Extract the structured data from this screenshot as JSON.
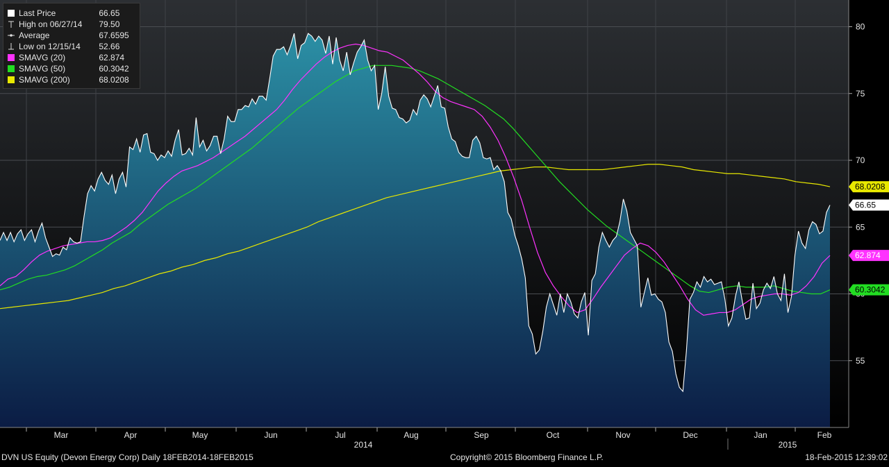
{
  "colors": {
    "background_top": "#2c2f33",
    "background_bottom": "#000000",
    "area_top": "#2b8fa5",
    "area_bottom": "#0b1c44",
    "price_line": "#ffffff",
    "sma20": "#ff33ff",
    "sma50": "#22dd22",
    "sma200": "#e8e800"
  },
  "legend": {
    "items": [
      {
        "label": "Last Price",
        "value": "66.65",
        "swatch": "#ffffff",
        "icon": "filled-square"
      },
      {
        "label": "High on 06/27/14",
        "value": "79.50",
        "swatch": "",
        "icon": "high-marker-icon"
      },
      {
        "label": "Average",
        "value": "67.6595",
        "swatch": "",
        "icon": "average-marker-icon"
      },
      {
        "label": "Low on 12/15/14",
        "value": "52.66",
        "swatch": "",
        "icon": "low-marker-icon"
      },
      {
        "label": "SMAVG (20)",
        "value": "62.874",
        "swatch": "#ff33ff",
        "icon": "filled-square"
      },
      {
        "label": "SMAVG (50)",
        "value": "60.3042",
        "swatch": "#22dd22",
        "icon": "filled-square"
      },
      {
        "label": "SMAVG (200)",
        "value": "68.0208",
        "swatch": "#e8e800",
        "icon": "filled-square"
      }
    ]
  },
  "badges": [
    {
      "value": "68.0208",
      "bg": "#e8e800",
      "fg": "#000000"
    },
    {
      "value": "66.65",
      "bg": "#ffffff",
      "fg": "#000000"
    },
    {
      "value": "62.874",
      "bg": "#ff33ff",
      "fg": "#ffffff"
    },
    {
      "value": "60.3042",
      "bg": "#22dd22",
      "fg": "#000000"
    }
  ],
  "footer": {
    "left": "DVN US Equity (Devon Energy Corp)  Daily 18FEB2014-18FEB2015",
    "center": "Copyright© 2015 Bloomberg Finance L.P.",
    "right": "18-Feb-2015 12:39:02"
  },
  "chart_data": {
    "type": "area",
    "ylim": [
      50,
      82
    ],
    "y_ticks": [
      55,
      60,
      65,
      70,
      75,
      80
    ],
    "y_tick_labels": [
      "55",
      "60",
      "65",
      "70",
      "75",
      "80"
    ],
    "x_month_labels": [
      "Mar",
      "Apr",
      "May",
      "Jun",
      "Jul",
      "Aug",
      "Sep",
      "Oct",
      "Nov",
      "Dec",
      "Jan",
      "Feb"
    ],
    "x_year_labels": [
      "2014",
      "2015"
    ],
    "grid": true,
    "series": [
      {
        "name": "Last Price",
        "values": [
          64.0,
          64.6,
          64.0,
          64.6,
          63.9,
          64.5,
          64.8,
          64.0,
          64.5,
          64.8,
          63.9,
          64.7,
          65.3,
          64.2,
          63.5,
          62.8,
          63.0,
          62.9,
          63.5,
          63.3,
          64.2,
          63.9,
          63.8,
          63.9,
          65.8,
          67.5,
          68.1,
          67.7,
          68.6,
          69.1,
          68.5,
          68.2,
          68.9,
          67.5,
          68.6,
          69.1,
          68.0,
          71.0,
          70.8,
          71.6,
          70.6,
          71.9,
          72.0,
          70.6,
          70.5,
          70.0,
          70.4,
          70.2,
          70.7,
          70.3,
          71.5,
          72.3,
          70.4,
          70.5,
          70.9,
          70.4,
          73.2,
          71.0,
          71.5,
          70.7,
          71.1,
          71.8,
          71.8,
          70.5,
          71.6,
          73.3,
          72.9,
          72.9,
          73.8,
          73.8,
          74.1,
          74.0,
          74.6,
          74.2,
          74.8,
          74.8,
          74.5,
          76.1,
          77.8,
          78.3,
          78.3,
          78.5,
          77.9,
          78.6,
          79.5,
          77.6,
          78.6,
          78.8,
          79.5,
          79.3,
          78.9,
          79.3,
          79.0,
          78.0,
          79.3,
          77.2,
          79.2,
          77.5,
          76.7,
          78.1,
          76.4,
          77.3,
          78.1,
          78.5,
          79.0,
          77.5,
          76.7,
          77.1,
          73.8,
          75.0,
          77.0,
          74.8,
          73.9,
          73.8,
          73.2,
          73.1,
          72.8,
          73.0,
          73.8,
          73.4,
          74.5,
          74.9,
          74.6,
          74.0,
          74.8,
          75.6,
          74.0,
          73.9,
          72.5,
          71.6,
          71.4,
          70.6,
          70.3,
          70.2,
          70.2,
          71.5,
          71.8,
          71.3,
          70.2,
          70.1,
          70.2,
          69.3,
          69.6,
          69.2,
          68.4,
          66.1,
          65.6,
          64.4,
          63.6,
          62.6,
          61.2,
          57.6,
          57.0,
          55.5,
          55.8,
          57.2,
          59.0,
          60.0,
          59.2,
          58.4,
          60.0,
          58.6,
          60.0,
          59.4,
          58.5,
          58.2,
          59.4,
          60.1,
          56.9,
          61.0,
          61.5,
          63.5,
          64.6,
          64.0,
          63.5,
          64.0,
          64.3,
          65.4,
          67.1,
          66.2,
          64.6,
          64.1,
          63.6,
          59.0,
          60.1,
          61.2,
          59.9,
          60.0,
          59.6,
          59.4,
          58.6,
          56.4,
          55.7,
          54.0,
          53.0,
          52.7,
          55.7,
          59.6,
          60.1,
          60.9,
          60.5,
          61.3,
          60.9,
          61.1,
          60.7,
          60.8,
          60.9,
          59.6,
          57.6,
          58.2,
          59.8,
          60.9,
          59.4,
          58.1,
          58.2,
          60.8,
          58.9,
          59.3,
          60.3,
          60.8,
          60.4,
          61.3,
          60.0,
          59.5,
          61.5,
          58.6,
          59.8,
          62.9,
          64.7,
          63.8,
          63.4,
          64.8,
          65.4,
          65.2,
          64.5,
          64.7,
          66.1,
          66.65
        ]
      },
      {
        "name": "SMAVG (20)",
        "values": [
          60.6,
          61.1,
          61.3,
          61.8,
          62.4,
          62.9,
          63.2,
          63.4,
          63.6,
          63.7,
          63.8,
          63.9,
          63.9,
          64.0,
          64.2,
          64.6,
          65.0,
          65.5,
          66.1,
          66.9,
          67.7,
          68.3,
          68.8,
          69.2,
          69.4,
          69.6,
          69.9,
          70.2,
          70.6,
          71.0,
          71.4,
          71.8,
          72.3,
          72.8,
          73.3,
          73.8,
          74.5,
          75.3,
          76.0,
          76.6,
          77.2,
          77.7,
          78.1,
          78.4,
          78.6,
          78.7,
          78.6,
          78.4,
          78.2,
          78.1,
          77.8,
          77.5,
          77.0,
          76.5,
          75.9,
          75.2,
          74.7,
          74.4,
          74.2,
          74.0,
          73.8,
          73.3,
          72.5,
          71.5,
          70.2,
          68.7,
          67.0,
          65.0,
          63.1,
          61.6,
          60.6,
          59.8,
          59.1,
          58.6,
          58.8,
          59.6,
          60.5,
          61.3,
          62.1,
          62.9,
          63.4,
          63.8,
          63.6,
          63.1,
          62.4,
          61.5,
          60.6,
          59.6,
          58.8,
          58.4,
          58.5,
          58.6,
          58.6,
          58.8,
          59.2,
          59.6,
          59.8,
          59.9,
          60.0,
          60.0,
          59.9,
          60.1,
          60.6,
          61.3,
          62.3,
          62.874
        ]
      },
      {
        "name": "SMAVG (50)",
        "values": [
          60.3,
          60.5,
          60.8,
          61.1,
          61.3,
          61.4,
          61.6,
          61.8,
          62.1,
          62.5,
          62.9,
          63.3,
          63.8,
          64.2,
          64.6,
          65.2,
          65.7,
          66.2,
          66.7,
          67.1,
          67.5,
          67.9,
          68.4,
          68.9,
          69.4,
          69.9,
          70.4,
          70.9,
          71.5,
          72.1,
          72.7,
          73.3,
          73.9,
          74.4,
          74.9,
          75.4,
          75.9,
          76.3,
          76.7,
          76.9,
          77.1,
          77.1,
          77.1,
          77.0,
          76.9,
          76.7,
          76.4,
          76.1,
          75.7,
          75.3,
          74.9,
          74.5,
          74.1,
          73.6,
          73.1,
          72.4,
          71.6,
          70.8,
          70.0,
          69.2,
          68.4,
          67.7,
          67.0,
          66.3,
          65.7,
          65.1,
          64.6,
          64.1,
          63.6,
          63.1,
          62.6,
          62.1,
          61.6,
          61.1,
          60.6,
          60.2,
          60.1,
          60.3,
          60.5,
          60.6,
          60.5,
          60.5,
          60.5,
          60.6,
          60.4,
          60.2,
          60.1,
          60.0,
          60.0,
          60.3042
        ]
      },
      {
        "name": "SMAVG (200)",
        "values": [
          58.9,
          59.0,
          59.1,
          59.2,
          59.3,
          59.4,
          59.5,
          59.7,
          59.9,
          60.1,
          60.4,
          60.6,
          60.9,
          61.2,
          61.5,
          61.7,
          62.0,
          62.2,
          62.5,
          62.7,
          63.0,
          63.2,
          63.5,
          63.8,
          64.1,
          64.4,
          64.7,
          65.0,
          65.4,
          65.7,
          66.0,
          66.3,
          66.6,
          66.9,
          67.2,
          67.4,
          67.6,
          67.8,
          68.0,
          68.2,
          68.4,
          68.6,
          68.8,
          69.0,
          69.2,
          69.3,
          69.4,
          69.5,
          69.5,
          69.4,
          69.3,
          69.3,
          69.3,
          69.3,
          69.4,
          69.5,
          69.6,
          69.7,
          69.7,
          69.6,
          69.5,
          69.3,
          69.2,
          69.1,
          69.0,
          69.0,
          68.9,
          68.8,
          68.7,
          68.6,
          68.4,
          68.3,
          68.2,
          68.0208
        ]
      }
    ]
  }
}
